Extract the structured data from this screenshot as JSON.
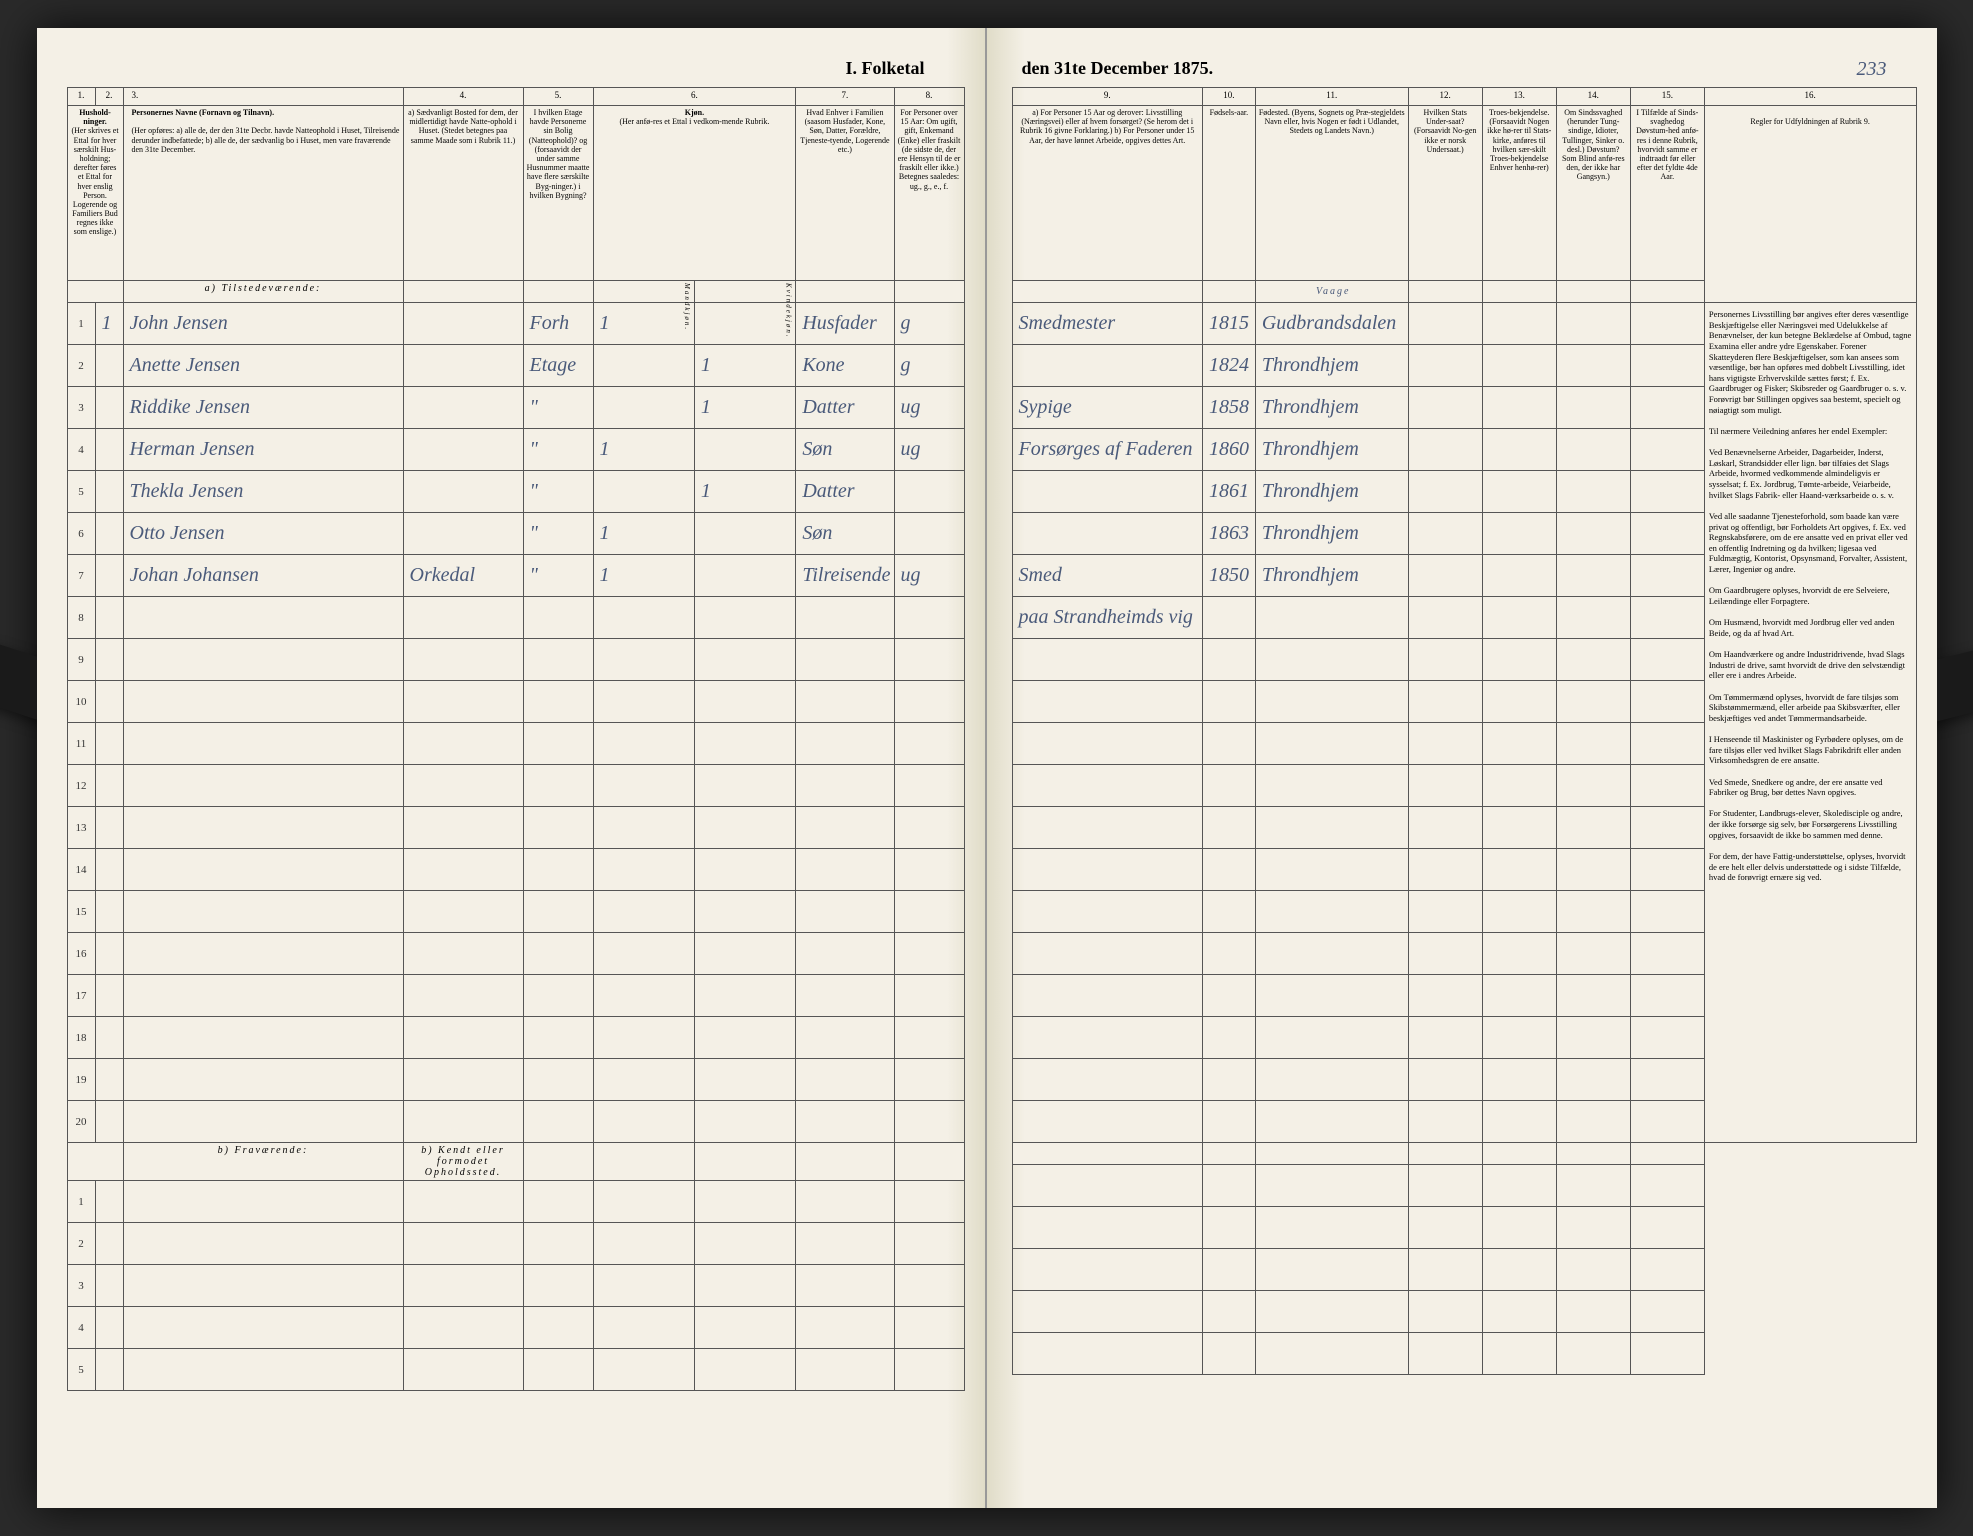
{
  "document": {
    "title_left": "I. Folketal",
    "title_right": "den 31te December 1875.",
    "page_number": "233"
  },
  "columns_left": {
    "c1": "1.",
    "c2": "2.",
    "c3": "3.",
    "c4": "4.",
    "c5": "5.",
    "c6": "6.",
    "c7": "7.",
    "c8": "8."
  },
  "columns_right": {
    "c9": "9.",
    "c10": "10.",
    "c11": "11.",
    "c12": "12.",
    "c13": "13.",
    "c14": "14.",
    "c15": "15.",
    "c16": "16."
  },
  "headers_left": {
    "husholdninger": "Hushold-\nninger.",
    "husholdninger_sub": "(Her skrives et Ettal for hver særskilt Hus-holdning; derefter føres et Ettal for hver enslig Person. Logerende og Familiers Bud regnes ikke som enslige.)",
    "personernes_navne": "Personernes Navne (Fornavn og Tilnavn).",
    "personernes_sub": "(Her opføres:\na) alle de, der den 31te Decbr. havde Natteophold i Huset, Tilreisende derunder indbefattede;\nb) alle de, der sædvanlig bo i Huset, men vare fraværende den 31te December.",
    "sedvanligt": "a) Sædvanligt Bosted for dem, der midlertidigt havde Natte-ophold i Huset.\n(Stedet betegnes paa samme Maade som i Rubrik 11.)",
    "etage": "I hvilken Etage havde Personerne sin Bolig (Natteophold)?\nog (forsaavidt der under samme Husnummer maatte have flere særskilte Byg-ninger.) i hvilken Bygning?",
    "kjon": "Kjøn.",
    "kjon_sub": "(Her anfø-res et Ettal i vedkom-mende Rubrik.",
    "kjon_m": "Mandkjøn.",
    "kjon_k": "Kvindekjøn.",
    "enhver": "Hvad Enhver i Familien\n(saasom Husfader, Kone, Søn, Datter, Forældre, Tjeneste-tyende, Logerende etc.)",
    "over15": "For Personer over 15 Aar: Om ugift, gift, Enkemand (Enke) eller fraskilt (de sidste de, der ere Hensyn til de er fraskilt eller ikke.)\nBetegnes saaledes: ug., g., e., f.",
    "tilstedevaerende": "a) Tilstedeværende:",
    "fravaerende": "b) Fraværende:",
    "kendt": "b) Kendt eller formodet Opholdssted."
  },
  "headers_right": {
    "livsstilling": "a) For Personer 15 Aar og derover: Livsstilling (Næringsvei) eller af hvem forsørget? (Se herom det i Rubrik 16 givne Forklaring.)\nb) For Personer under 15 Aar, der have lønnet Arbeide, opgives dettes Art.",
    "fodselsaar": "Fødsels-aar.",
    "fodested": "Fødested.\n(Byens, Sognets og Præ-stegjeldets Navn eller, hvis Nogen er født i Udlandet, Stedets og Landets Navn.)",
    "undersaat": "Hvilken Stats Under-saat?\n(Forsaavidt No-gen ikke er norsk Undersaat.)",
    "troes": "Troes-bekjendelse.\n(Forsaavidt Nogen ikke hø-rer til Stats-kirke, anføres til hvilken sær-skilt Troes-bekjendelse Enhver henhø-rer)",
    "sindssvaghed": "Om Sindssvaghed (herunder Tung-sindige, Idioter, Tullinger, Sinker o. desl.)\nDøvstum? Som Blind anfø-res den, der ikke har Gangsyn.)",
    "tilfaelde": "I Tilfælde af Sinds-svaghedog Døvstum-hed anfø-res i denne Rubrik, hvorvidt samme er indtraadt før eller efter det fyldte 4de Aar.",
    "regler": "Regler for Udfyldningen\naf\nRubrik 9."
  },
  "instructions_text": "Personernes Livsstilling bør angives efter deres væsentlige Beskjæftigelse eller Næringsvei med Udelukkelse af Benævnelser, der kun betegne Beklædelse af Ombud, tagne Examina eller andre ydre Egenskaber. Forener Skatteyderen flere Beskjæftigelser, som kan ansees som væsentlige, bør han opføres med dobbelt Livsstilling, idet hans vigtigste Erhvervskilde sættes først; f. Ex. Gaardbruger og Fisker; Skibsreder og Gaardbruger o. s. v. Forøvrigt bør Stillingen opgives saa bestemt, specielt og nøiagtigt som muligt.\n\nTil nærmere Veiledning anføres her endel Exempler:\n\nVed Benævnelserne Arbeider, Dagarbeider, Inderst, Løskarl, Strandsidder eller lign. bør tilføies det Slags Arbeide, hvormed vedkommende almindeligvis er sysselsat; f. Ex. Jordbrug, Tømte-arbeide, Veiarbeide, hvilket Slags Fabrik- eller Haand-værksarbeide o. s. v.\n\nVed alle saadanne Tjenesteforhold, som baade kan være privat og offentligt, bør Forholdets Art opgives, f. Ex. ved Regnskabsførere, om de ere ansatte ved en privat eller ved en offentlig Indretning og da hvilken; ligesaa ved Fuldmægtig, Kontorist, Opsynsmand, Forvalter, Assistent, Lærer, Ingeniør og andre.\n\nOm Gaardbrugere oplyses, hvorvidt de ere Selveiere, Leilændinge eller Forpagtere.\n\nOm Husmænd, hvorvidt med Jordbrug eller ved anden Beide, og da af hvad Art.\n\nOm Haandværkere og andre Industridrivende, hvad Slags Industri de drive, samt hvorvidt de drive den selvstændigt eller ere i andres Arbeide.\n\nOm Tømmermænd oplyses, hvorvidt de fare tilsjøs som Skibstømmermænd, eller arbeide paa Skibsværfter, eller beskjæftiges ved andet Tømmermandsarbeide.\n\nI Henseende til Maskinister og Fyrbødere oplyses, om de fare tilsjøs eller ved hvilket Slags Fabrikdrift eller anden Virksomhedsgren de ere ansatte.\n\nVed Smede, Snedkere og andre, der ere ansatte ved Fabriker og Brug, bør dettes Navn opgives.\n\nFor Studenter, Landbrugs-elever, Skoledisciple og andre, der ikke forsørge sig selv, bør Forsørgerens Livsstilling opgives, forsaavidt de ikke bo sammen med denne.\n\nFor dem, der have Fattig-understøttelse, oplyses, hvorvidt de ere helt eller delvis understøttede og i sidste Tilfælde, hvad de forøvrigt ernære sig ved.",
  "rows": [
    {
      "n": "1",
      "h": "1",
      "name": "John Jensen",
      "bosted": "",
      "etage": "Forh",
      "m": "1",
      "k": "",
      "fam": "Husfader",
      "stand": "g",
      "liv": "Smedmester",
      "aar": "1815",
      "sted": "Gudbrandsdalen"
    },
    {
      "n": "2",
      "h": "",
      "name": "Anette Jensen",
      "bosted": "",
      "etage": "Etage",
      "m": "",
      "k": "1",
      "fam": "Kone",
      "stand": "g",
      "liv": "",
      "aar": "1824",
      "sted": "Throndhjem"
    },
    {
      "n": "3",
      "h": "",
      "name": "Riddike Jensen",
      "bosted": "",
      "etage": "\"",
      "m": "",
      "k": "1",
      "fam": "Datter",
      "stand": "ug",
      "liv": "Sypige",
      "aar": "1858",
      "sted": "Throndhjem"
    },
    {
      "n": "4",
      "h": "",
      "name": "Herman Jensen",
      "bosted": "",
      "etage": "\"",
      "m": "1",
      "k": "",
      "fam": "Søn",
      "stand": "ug",
      "liv": "Forsørges af Faderen",
      "aar": "1860",
      "sted": "Throndhjem"
    },
    {
      "n": "5",
      "h": "",
      "name": "Thekla Jensen",
      "bosted": "",
      "etage": "\"",
      "m": "",
      "k": "1",
      "fam": "Datter",
      "stand": "",
      "liv": "",
      "aar": "1861",
      "sted": "Throndhjem"
    },
    {
      "n": "6",
      "h": "",
      "name": "Otto Jensen",
      "bosted": "",
      "etage": "\"",
      "m": "1",
      "k": "",
      "fam": "Søn",
      "stand": "",
      "liv": "",
      "aar": "1863",
      "sted": "Throndhjem"
    },
    {
      "n": "7",
      "h": "",
      "name": "Johan Johansen",
      "bosted": "Orkedal",
      "etage": "\"",
      "m": "1",
      "k": "",
      "fam": "Tilreisende",
      "stand": "ug",
      "liv": "Smed",
      "aar": "1850",
      "sted": "Throndhjem"
    },
    {
      "n": "8",
      "h": "",
      "name": "",
      "bosted": "",
      "etage": "",
      "m": "",
      "k": "",
      "fam": "",
      "stand": "",
      "liv": "paa Strandheimds vig",
      "aar": "",
      "sted": ""
    }
  ],
  "empty_rows_a": [
    "9",
    "10",
    "11",
    "12",
    "13",
    "14",
    "15",
    "16",
    "17",
    "18",
    "19",
    "20"
  ],
  "empty_rows_b": [
    "1",
    "2",
    "3",
    "4",
    "5"
  ],
  "side_label": "Vaage"
}
